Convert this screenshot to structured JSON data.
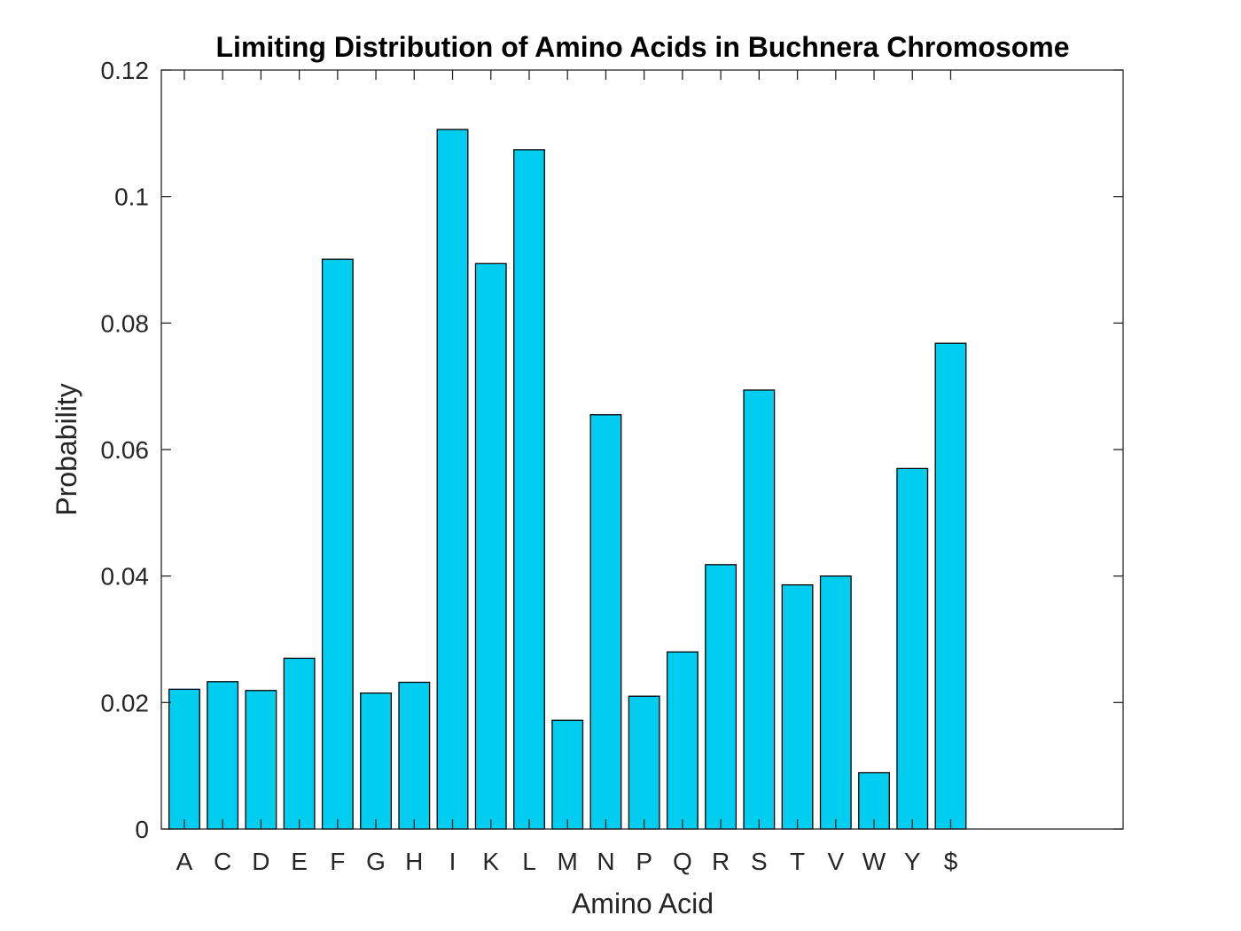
{
  "chart_data": {
    "type": "bar",
    "title": "Limiting Distribution of Amino Acids in Buchnera Chromosome",
    "xlabel": "Amino Acid",
    "ylabel": "Probability",
    "categories": [
      "A",
      "C",
      "D",
      "E",
      "F",
      "G",
      "H",
      "I",
      "K",
      "L",
      "M",
      "N",
      "P",
      "Q",
      "R",
      "S",
      "T",
      "V",
      "W",
      "Y",
      "$"
    ],
    "values": [
      0.0221,
      0.0233,
      0.0219,
      0.027,
      0.0901,
      0.0215,
      0.0232,
      0.1106,
      0.0894,
      0.1074,
      0.0172,
      0.0655,
      0.021,
      0.028,
      0.0418,
      0.0694,
      0.0386,
      0.04,
      0.0089,
      0.057,
      0.0768
    ],
    "ylim": [
      0,
      0.12
    ],
    "xlim": [
      0.4,
      25.5
    ],
    "yticks": [
      0,
      0.02,
      0.04,
      0.06,
      0.08,
      0.1,
      0.12
    ],
    "ytick_labels": [
      "0",
      "0.02",
      "0.04",
      "0.06",
      "0.08",
      "0.1",
      "0.12"
    ],
    "bar_color": "#00cdef",
    "grid": false,
    "legend": "none"
  }
}
